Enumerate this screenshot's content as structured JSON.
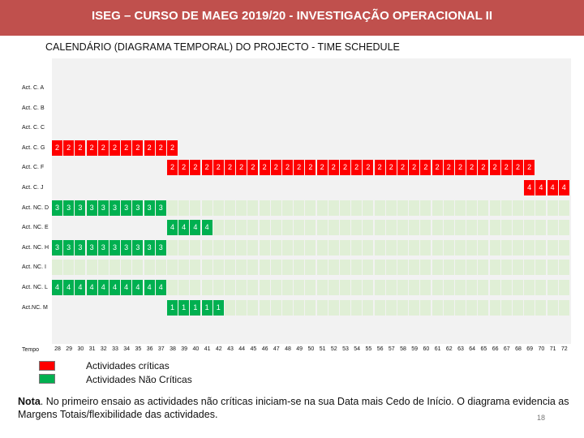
{
  "header": {
    "title": "ISEG – CURSO DE MAEG 2019/20 - INVESTIGAÇÃO OPERACIONAL II"
  },
  "subtitle": "CALENDÁRIO  (DIAGRAMA TEMPORAL) DO PROJECTO  - TIME SCHEDULE",
  "chart_data": {
    "type": "table",
    "title": "Time schedule",
    "xlabel": "Tempo",
    "ticks": [
      "28",
      "29",
      "30",
      "31",
      "32",
      "33",
      "34",
      "35",
      "36",
      "37",
      "38",
      "39",
      "40",
      "41",
      "42",
      "43",
      "44",
      "45",
      "46",
      "47",
      "48",
      "49",
      "50",
      "51",
      "52",
      "53",
      "54",
      "55",
      "56",
      "57",
      "58",
      "59",
      "60",
      "61",
      "62",
      "63",
      "64",
      "65",
      "66",
      "67",
      "68",
      "69",
      "70",
      "71",
      "72"
    ],
    "rows": [
      {
        "label": "Act. C. A",
        "critical": true,
        "bars": []
      },
      {
        "label": "Act. C. B",
        "critical": true,
        "bars": []
      },
      {
        "label": "Act. C. C",
        "critical": true,
        "bars": []
      },
      {
        "label": "Act. C. G",
        "critical": true,
        "bars": [
          {
            "start": 28,
            "end": 38,
            "value": 2
          }
        ]
      },
      {
        "label": "Act. C. F",
        "critical": true,
        "bars": [
          {
            "start": 38,
            "end": 69,
            "value": 2
          }
        ]
      },
      {
        "label": "Act. C. J",
        "critical": true,
        "bars": [
          {
            "start": 69,
            "end": 72,
            "value": 4
          }
        ]
      },
      {
        "label": "Act. NC. D",
        "critical": false,
        "bars": [
          {
            "start": 28,
            "end": 37,
            "value": 3
          }
        ],
        "slack": [
          38,
          72
        ]
      },
      {
        "label": "Act. NC. E",
        "critical": false,
        "bars": [
          {
            "start": 38,
            "end": 41,
            "value": 4
          }
        ],
        "slack": [
          42,
          72
        ]
      },
      {
        "label": "Act. NC. H",
        "critical": false,
        "bars": [
          {
            "start": 28,
            "end": 37,
            "value": 3
          }
        ],
        "slack": [
          38,
          72
        ]
      },
      {
        "label": "Act. NC. I",
        "critical": false,
        "bars": [],
        "slack": [
          28,
          72
        ]
      },
      {
        "label": "Act. NC. L",
        "critical": false,
        "bars": [
          {
            "start": 28,
            "end": 37,
            "value": 4
          }
        ],
        "slack": [
          38,
          72
        ]
      },
      {
        "label": "Act.NC. M",
        "critical": false,
        "bars": [
          {
            "start": 38,
            "end": 42,
            "value": 1
          }
        ],
        "slack": [
          43,
          72
        ]
      }
    ],
    "colors": {
      "critical": "#ff0000",
      "noncritical": "#00b050",
      "slack": "#e0efd6",
      "header": "#c0504d"
    }
  },
  "legend": {
    "critical_label": "Actividades críticas",
    "noncritical_label": "Actividades Não Críticas"
  },
  "note": {
    "bold": "Nota",
    "text": ". No primeiro ensaio as actividades não críticas iniciam-se na sua Data mais Cedo de Início. O diagrama evidencia as Margens Totais/flexibilidade das actividades."
  },
  "slide_number": "18"
}
